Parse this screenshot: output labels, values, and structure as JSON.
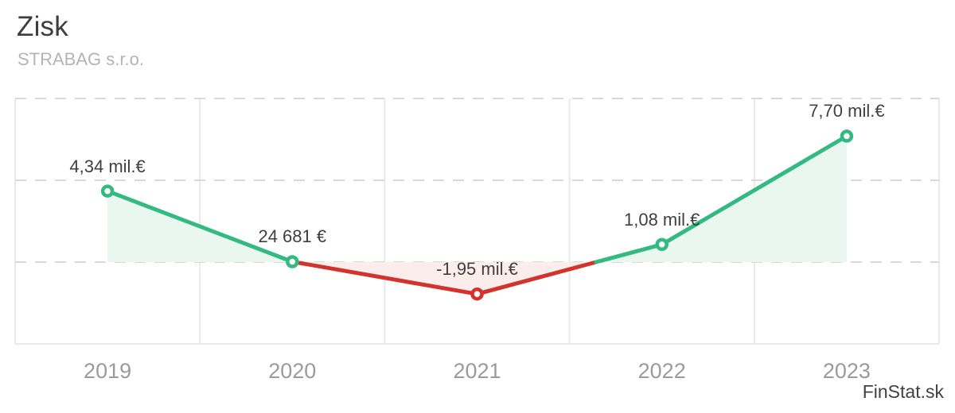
{
  "header": {
    "title": "Zisk",
    "subtitle": "STRABAG s.r.o."
  },
  "watermark": "FinStat.sk",
  "chart_data": {
    "type": "line",
    "title": "Zisk",
    "subtitle": "STRABAG s.r.o.",
    "categories": [
      "2019",
      "2020",
      "2021",
      "2022",
      "2023"
    ],
    "series": [
      {
        "name": "Zisk",
        "values_mil_eur": [
          4.34,
          0.024681,
          -1.95,
          1.08,
          7.7
        ],
        "point_labels": [
          "4,34 mil.€",
          "24 681 €",
          "-1,95 mil.€",
          "1,08 mil.€",
          "7,70 mil.€"
        ]
      }
    ],
    "xlabel": "",
    "ylabel": "",
    "ylim_mil_eur": [
      -5,
      10
    ],
    "gridlines_mil_eur": [
      10,
      5,
      0,
      -5
    ],
    "grid": "horizontal-dashed, vertical-solid-column-separators",
    "legend_position": "none",
    "colors": {
      "positive_line": "#33ba80",
      "negative_line": "#d3332d",
      "positive_fill": "#eaf6f0",
      "negative_fill": "#faedec",
      "grid_vertical": "#e4eaed",
      "grid_dashed": "#d9d9d9",
      "axis_labels": "#9b9b9b",
      "point_labels": "#3f3f3f",
      "marker_fill": "#ffffff"
    }
  }
}
